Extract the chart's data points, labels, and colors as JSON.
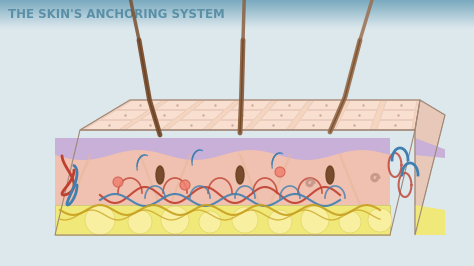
{
  "title": "THE SKIN'S ANCHORING SYSTEM",
  "title_color": "#5a8fa8",
  "bg_color": "#dde8ed",
  "title_bg_gradient_start": "#7aaabf",
  "title_bg_gradient_end": "#dde8ed",
  "skin_top_color": "#f5d9c8",
  "skin_mid_color": "#c8b8d8",
  "skin_dermis_color": "#f0c8b8",
  "skin_hypodermis_color": "#f0e890",
  "hair_color": "#8b5e3c",
  "vessel_red": "#c04030",
  "vessel_blue": "#4080b0",
  "nerve_gold": "#c8a020",
  "sweat_color": "#b8d0e0"
}
